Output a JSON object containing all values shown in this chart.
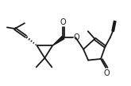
{
  "bg_color": "#ffffff",
  "line_color": "#1a1a1a",
  "lw": 1.3,
  "figsize": [
    1.65,
    1.08
  ],
  "dpi": 100,
  "xlim": [
    0.0,
    10.0
  ],
  "ylim": [
    1.0,
    7.0
  ]
}
